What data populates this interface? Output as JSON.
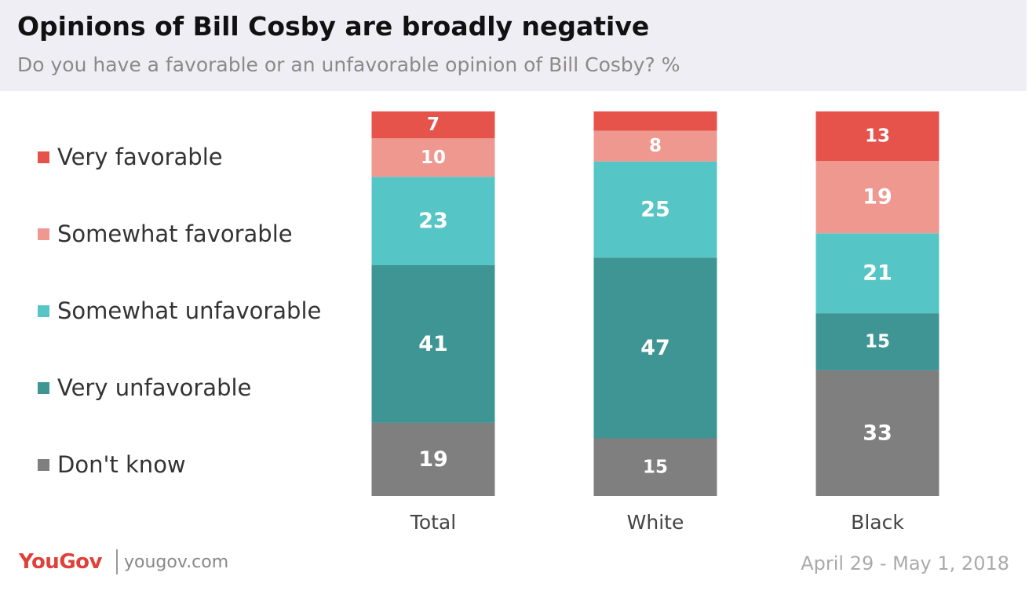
{
  "title": "Opinions of Bill Cosby are broadly negative",
  "subtitle": "Do you have a favorable or an unfavorable opinion of Bill Cosby? %",
  "footer": {
    "brand": "YouGov",
    "site": "yougov.com",
    "date": "April 29 - May 1, 2018"
  },
  "chart_data": {
    "type": "bar",
    "stacked": true,
    "title": "Opinions of Bill Cosby are broadly negative",
    "subtitle": "Do you have a favorable or an unfavorable opinion of Bill Cosby? %",
    "categories": [
      "Total",
      "White",
      "Black"
    ],
    "series": [
      {
        "name": "Very favorable",
        "color": "#e5534b",
        "values": [
          7,
          5,
          13
        ],
        "labels": [
          "7",
          "",
          "13"
        ]
      },
      {
        "name": "Somewhat favorable",
        "color": "#ee9890",
        "values": [
          10,
          8,
          19
        ],
        "labels": [
          "10",
          "8",
          "19"
        ]
      },
      {
        "name": "Somewhat unfavorable",
        "color": "#56c5c5",
        "values": [
          23,
          25,
          21
        ],
        "labels": [
          "23",
          "25",
          "21"
        ]
      },
      {
        "name": "Very unfavorable",
        "color": "#3e9593",
        "values": [
          41,
          47,
          15
        ],
        "labels": [
          "41",
          "47",
          "15"
        ]
      },
      {
        "name": "Don't know",
        "color": "#7f7f7f",
        "values": [
          19,
          15,
          33
        ],
        "labels": [
          "19",
          "15",
          "33"
        ]
      }
    ],
    "stack_order": "top-to-bottom",
    "legend_position": "left",
    "grid": false
  }
}
